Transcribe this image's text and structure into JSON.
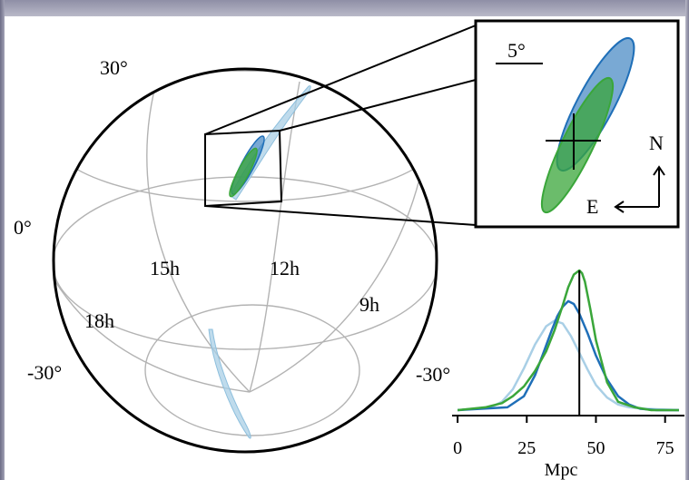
{
  "chart_data": [
    {
      "type": "sky-map",
      "projection": "orthographic globe",
      "dec_labels": [
        "30°",
        "0°",
        "-30°",
        "-30°"
      ],
      "ra_labels": [
        "15h",
        "12h",
        "18h",
        "9h"
      ],
      "grid": true,
      "series": [
        {
          "color": "#a9cfe6",
          "fill_opacity": 0.75
        },
        {
          "color": "#1f6fb8",
          "fill_opacity": 0.65
        },
        {
          "color": "#3aa63a",
          "fill_opacity": 0.75
        }
      ]
    },
    {
      "type": "inset",
      "scale_label": "5°",
      "compass": {
        "north": "N",
        "east": "E"
      }
    },
    {
      "type": "line",
      "xlabel": "Mpc",
      "xlim": [
        -2,
        82
      ],
      "xticks": [
        0,
        25,
        50,
        75
      ],
      "vertical_line_x": 44,
      "series": [
        {
          "color": "#a9cfe6",
          "x": [
            0,
            12,
            16,
            20,
            24,
            28,
            32,
            35,
            38,
            41,
            44,
            47,
            50,
            54,
            58,
            62,
            68,
            80
          ],
          "y": [
            0,
            0.02,
            0.06,
            0.15,
            0.3,
            0.47,
            0.6,
            0.64,
            0.62,
            0.53,
            0.41,
            0.29,
            0.18,
            0.09,
            0.04,
            0.02,
            0.01,
            0
          ]
        },
        {
          "color": "#1f6fb8",
          "x": [
            0,
            18,
            24,
            28,
            31,
            34,
            36,
            38,
            40,
            42,
            44,
            47,
            50,
            54,
            58,
            62,
            66,
            72,
            80
          ],
          "y": [
            0,
            0.02,
            0.1,
            0.25,
            0.41,
            0.57,
            0.67,
            0.74,
            0.78,
            0.76,
            0.69,
            0.55,
            0.39,
            0.22,
            0.1,
            0.04,
            0.01,
            0,
            0
          ]
        },
        {
          "color": "#3aa63a",
          "x": [
            0,
            10,
            16,
            20,
            24,
            28,
            32,
            35,
            38,
            40,
            42,
            44,
            45,
            46,
            48,
            50,
            54,
            58,
            64,
            70,
            80
          ],
          "y": [
            0,
            0.02,
            0.05,
            0.1,
            0.17,
            0.28,
            0.42,
            0.57,
            0.75,
            0.88,
            0.97,
            1.0,
            0.98,
            0.92,
            0.72,
            0.5,
            0.2,
            0.06,
            0.02,
            0,
            0
          ]
        }
      ]
    }
  ]
}
